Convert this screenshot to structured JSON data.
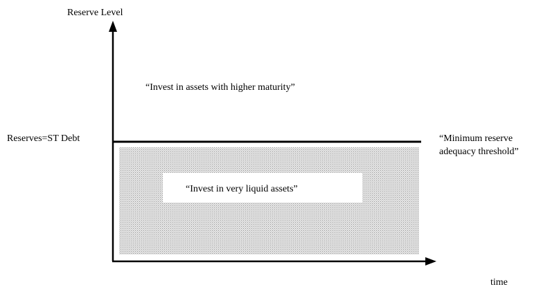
{
  "axes": {
    "y_label": "Reserve Level",
    "x_label": "time"
  },
  "threshold": {
    "label": "Reserves=ST Debt",
    "note_lines": [
      "“Minimum reserve",
      "adequacy threshold”"
    ]
  },
  "regions": {
    "upper": "“Invest in assets with higher maturity”",
    "lower": "“Invest in very liquid assets”"
  }
}
